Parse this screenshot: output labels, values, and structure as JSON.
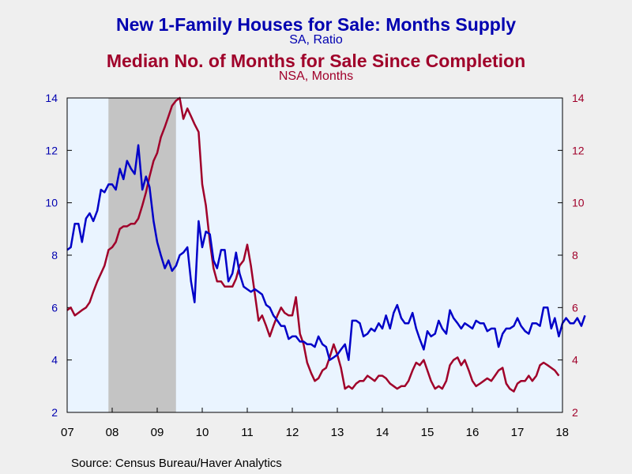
{
  "chart_data": {
    "type": "line",
    "titles": {
      "series1_title": "New 1-Family Houses for Sale: Months Supply",
      "series1_subtitle": "SA, Ratio",
      "series2_title": "Median No. of Months for Sale Since Completion",
      "series2_subtitle": "NSA, Months"
    },
    "x_ticks": [
      "07",
      "08",
      "09",
      "10",
      "11",
      "12",
      "13",
      "14",
      "15",
      "16",
      "17",
      "18"
    ],
    "xlim": [
      2007.0,
      2018.0
    ],
    "y_left": {
      "min": 2,
      "max": 14,
      "ticks": [
        "2",
        "4",
        "6",
        "8",
        "10",
        "12",
        "14"
      ]
    },
    "y_right": {
      "min": 2,
      "max": 14,
      "ticks": [
        "2",
        "4",
        "6",
        "8",
        "10",
        "12",
        "14"
      ]
    },
    "recession": {
      "start": 2007.917,
      "end": 2009.417
    },
    "colors": {
      "series1": "#0000c8",
      "series2": "#a0002a",
      "plot_bg": "#eaf4ff",
      "recession": "#c4c4c4",
      "left_ticks": "#0000b0",
      "right_ticks": "#a0002a"
    },
    "series": [
      {
        "axis": "left",
        "points": [
          [
            2007.0,
            8.2
          ],
          [
            2007.08,
            8.3
          ],
          [
            2007.17,
            9.2
          ],
          [
            2007.25,
            9.2
          ],
          [
            2007.33,
            8.5
          ],
          [
            2007.42,
            9.4
          ],
          [
            2007.5,
            9.6
          ],
          [
            2007.58,
            9.3
          ],
          [
            2007.67,
            9.7
          ],
          [
            2007.75,
            10.5
          ],
          [
            2007.83,
            10.4
          ],
          [
            2007.92,
            10.7
          ],
          [
            2008.0,
            10.7
          ],
          [
            2008.08,
            10.5
          ],
          [
            2008.17,
            11.3
          ],
          [
            2008.25,
            10.9
          ],
          [
            2008.33,
            11.6
          ],
          [
            2008.42,
            11.3
          ],
          [
            2008.5,
            11.1
          ],
          [
            2008.58,
            12.2
          ],
          [
            2008.67,
            10.5
          ],
          [
            2008.75,
            11.0
          ],
          [
            2008.83,
            10.6
          ],
          [
            2008.92,
            9.3
          ],
          [
            2009.0,
            8.5
          ],
          [
            2009.08,
            8.0
          ],
          [
            2009.17,
            7.5
          ],
          [
            2009.25,
            7.8
          ],
          [
            2009.33,
            7.4
          ],
          [
            2009.42,
            7.6
          ],
          [
            2009.5,
            8.0
          ],
          [
            2009.58,
            8.1
          ],
          [
            2009.67,
            8.3
          ],
          [
            2009.75,
            7.0
          ],
          [
            2009.83,
            6.2
          ],
          [
            2009.92,
            9.3
          ],
          [
            2010.0,
            8.3
          ],
          [
            2010.08,
            8.9
          ],
          [
            2010.17,
            8.8
          ],
          [
            2010.25,
            7.8
          ],
          [
            2010.33,
            7.5
          ],
          [
            2010.42,
            8.2
          ],
          [
            2010.5,
            8.2
          ],
          [
            2010.58,
            7.0
          ],
          [
            2010.67,
            7.3
          ],
          [
            2010.75,
            8.1
          ],
          [
            2010.83,
            7.3
          ],
          [
            2010.92,
            6.8
          ],
          [
            2011.0,
            6.7
          ],
          [
            2011.08,
            6.6
          ],
          [
            2011.17,
            6.7
          ],
          [
            2011.25,
            6.6
          ],
          [
            2011.33,
            6.5
          ],
          [
            2011.42,
            6.1
          ],
          [
            2011.5,
            6.0
          ],
          [
            2011.58,
            5.7
          ],
          [
            2011.67,
            5.5
          ],
          [
            2011.75,
            5.3
          ],
          [
            2011.83,
            5.3
          ],
          [
            2011.92,
            4.8
          ],
          [
            2012.0,
            4.9
          ],
          [
            2012.08,
            4.9
          ],
          [
            2012.17,
            4.7
          ],
          [
            2012.25,
            4.7
          ],
          [
            2012.33,
            4.6
          ],
          [
            2012.42,
            4.6
          ],
          [
            2012.5,
            4.5
          ],
          [
            2012.58,
            4.9
          ],
          [
            2012.67,
            4.6
          ],
          [
            2012.75,
            4.5
          ],
          [
            2012.83,
            4.0
          ],
          [
            2012.92,
            4.1
          ],
          [
            2013.0,
            4.2
          ],
          [
            2013.08,
            4.4
          ],
          [
            2013.17,
            4.6
          ],
          [
            2013.25,
            4.0
          ],
          [
            2013.33,
            5.5
          ],
          [
            2013.42,
            5.5
          ],
          [
            2013.5,
            5.4
          ],
          [
            2013.58,
            4.9
          ],
          [
            2013.67,
            5.0
          ],
          [
            2013.75,
            5.2
          ],
          [
            2013.83,
            5.1
          ],
          [
            2013.92,
            5.4
          ],
          [
            2014.0,
            5.2
          ],
          [
            2014.08,
            5.7
          ],
          [
            2014.17,
            5.2
          ],
          [
            2014.25,
            5.8
          ],
          [
            2014.33,
            6.1
          ],
          [
            2014.42,
            5.6
          ],
          [
            2014.5,
            5.4
          ],
          [
            2014.58,
            5.4
          ],
          [
            2014.67,
            5.8
          ],
          [
            2014.75,
            5.2
          ],
          [
            2014.83,
            4.8
          ],
          [
            2014.92,
            4.4
          ],
          [
            2015.0,
            5.1
          ],
          [
            2015.08,
            4.9
          ],
          [
            2015.17,
            5.0
          ],
          [
            2015.25,
            5.5
          ],
          [
            2015.33,
            5.2
          ],
          [
            2015.42,
            5.0
          ],
          [
            2015.5,
            5.9
          ],
          [
            2015.58,
            5.6
          ],
          [
            2015.67,
            5.4
          ],
          [
            2015.75,
            5.2
          ],
          [
            2015.83,
            5.4
          ],
          [
            2015.92,
            5.3
          ],
          [
            2016.0,
            5.2
          ],
          [
            2016.08,
            5.5
          ],
          [
            2016.17,
            5.4
          ],
          [
            2016.25,
            5.4
          ],
          [
            2016.33,
            5.1
          ],
          [
            2016.42,
            5.2
          ],
          [
            2016.5,
            5.2
          ],
          [
            2016.58,
            4.5
          ],
          [
            2016.67,
            5.0
          ],
          [
            2016.75,
            5.2
          ],
          [
            2016.83,
            5.2
          ],
          [
            2016.92,
            5.3
          ],
          [
            2017.0,
            5.6
          ],
          [
            2017.08,
            5.3
          ],
          [
            2017.17,
            5.1
          ],
          [
            2017.25,
            5.0
          ],
          [
            2017.33,
            5.4
          ],
          [
            2017.42,
            5.4
          ],
          [
            2017.5,
            5.3
          ],
          [
            2017.58,
            6.0
          ],
          [
            2017.67,
            6.0
          ],
          [
            2017.75,
            5.2
          ],
          [
            2017.83,
            5.6
          ],
          [
            2017.92,
            4.9
          ],
          [
            2018.0,
            5.4
          ],
          [
            2018.08,
            5.6
          ],
          [
            2018.17,
            5.4
          ],
          [
            2018.25,
            5.4
          ],
          [
            2018.33,
            5.6
          ],
          [
            2018.42,
            5.3
          ],
          [
            2018.5,
            5.7
          ]
        ]
      },
      {
        "axis": "right",
        "points": [
          [
            2007.0,
            5.9
          ],
          [
            2007.08,
            6.0
          ],
          [
            2007.17,
            5.7
          ],
          [
            2007.25,
            5.8
          ],
          [
            2007.33,
            5.9
          ],
          [
            2007.42,
            6.0
          ],
          [
            2007.5,
            6.2
          ],
          [
            2007.58,
            6.6
          ],
          [
            2007.67,
            7.0
          ],
          [
            2007.75,
            7.3
          ],
          [
            2007.83,
            7.6
          ],
          [
            2007.92,
            8.2
          ],
          [
            2008.0,
            8.3
          ],
          [
            2008.08,
            8.5
          ],
          [
            2008.17,
            9.0
          ],
          [
            2008.25,
            9.1
          ],
          [
            2008.33,
            9.1
          ],
          [
            2008.42,
            9.2
          ],
          [
            2008.5,
            9.2
          ],
          [
            2008.58,
            9.4
          ],
          [
            2008.67,
            9.9
          ],
          [
            2008.75,
            10.4
          ],
          [
            2008.83,
            11.0
          ],
          [
            2008.92,
            11.6
          ],
          [
            2009.0,
            11.9
          ],
          [
            2009.08,
            12.5
          ],
          [
            2009.17,
            12.9
          ],
          [
            2009.25,
            13.3
          ],
          [
            2009.33,
            13.7
          ],
          [
            2009.42,
            13.9
          ],
          [
            2009.5,
            14.0
          ],
          [
            2009.58,
            13.2
          ],
          [
            2009.67,
            13.6
          ],
          [
            2009.75,
            13.3
          ],
          [
            2009.83,
            13.0
          ],
          [
            2009.92,
            12.7
          ],
          [
            2010.0,
            10.7
          ],
          [
            2010.08,
            9.9
          ],
          [
            2010.17,
            8.5
          ],
          [
            2010.25,
            7.5
          ],
          [
            2010.33,
            7.0
          ],
          [
            2010.42,
            7.0
          ],
          [
            2010.5,
            6.8
          ],
          [
            2010.58,
            6.8
          ],
          [
            2010.67,
            6.8
          ],
          [
            2010.75,
            7.1
          ],
          [
            2010.83,
            7.6
          ],
          [
            2010.92,
            7.8
          ],
          [
            2011.0,
            8.4
          ],
          [
            2011.08,
            7.6
          ],
          [
            2011.17,
            6.5
          ],
          [
            2011.25,
            5.5
          ],
          [
            2011.33,
            5.7
          ],
          [
            2011.42,
            5.3
          ],
          [
            2011.5,
            4.9
          ],
          [
            2011.58,
            5.3
          ],
          [
            2011.67,
            5.7
          ],
          [
            2011.75,
            6.0
          ],
          [
            2011.83,
            5.8
          ],
          [
            2011.92,
            5.7
          ],
          [
            2012.0,
            5.7
          ],
          [
            2012.08,
            6.4
          ],
          [
            2012.17,
            5.0
          ],
          [
            2012.25,
            4.6
          ],
          [
            2012.33,
            3.9
          ],
          [
            2012.42,
            3.5
          ],
          [
            2012.5,
            3.2
          ],
          [
            2012.58,
            3.3
          ],
          [
            2012.67,
            3.6
          ],
          [
            2012.75,
            3.7
          ],
          [
            2012.83,
            4.1
          ],
          [
            2012.92,
            4.6
          ],
          [
            2013.0,
            4.2
          ],
          [
            2013.08,
            3.7
          ],
          [
            2013.17,
            2.9
          ],
          [
            2013.25,
            3.0
          ],
          [
            2013.33,
            2.9
          ],
          [
            2013.42,
            3.1
          ],
          [
            2013.5,
            3.2
          ],
          [
            2013.58,
            3.2
          ],
          [
            2013.67,
            3.4
          ],
          [
            2013.75,
            3.3
          ],
          [
            2013.83,
            3.2
          ],
          [
            2013.92,
            3.4
          ],
          [
            2014.0,
            3.4
          ],
          [
            2014.08,
            3.3
          ],
          [
            2014.17,
            3.1
          ],
          [
            2014.25,
            3.0
          ],
          [
            2014.33,
            2.9
          ],
          [
            2014.42,
            3.0
          ],
          [
            2014.5,
            3.0
          ],
          [
            2014.58,
            3.2
          ],
          [
            2014.67,
            3.6
          ],
          [
            2014.75,
            3.9
          ],
          [
            2014.83,
            3.8
          ],
          [
            2014.92,
            4.0
          ],
          [
            2015.0,
            3.6
          ],
          [
            2015.08,
            3.2
          ],
          [
            2015.17,
            2.9
          ],
          [
            2015.25,
            3.0
          ],
          [
            2015.33,
            2.9
          ],
          [
            2015.42,
            3.2
          ],
          [
            2015.5,
            3.8
          ],
          [
            2015.58,
            4.0
          ],
          [
            2015.67,
            4.1
          ],
          [
            2015.75,
            3.8
          ],
          [
            2015.83,
            4.0
          ],
          [
            2015.92,
            3.6
          ],
          [
            2016.0,
            3.2
          ],
          [
            2016.08,
            3.0
          ],
          [
            2016.17,
            3.1
          ],
          [
            2016.25,
            3.2
          ],
          [
            2016.33,
            3.3
          ],
          [
            2016.42,
            3.2
          ],
          [
            2016.5,
            3.4
          ],
          [
            2016.58,
            3.6
          ],
          [
            2016.67,
            3.7
          ],
          [
            2016.75,
            3.1
          ],
          [
            2016.83,
            2.9
          ],
          [
            2016.92,
            2.8
          ],
          [
            2017.0,
            3.1
          ],
          [
            2017.08,
            3.2
          ],
          [
            2017.17,
            3.2
          ],
          [
            2017.25,
            3.4
          ],
          [
            2017.33,
            3.2
          ],
          [
            2017.42,
            3.4
          ],
          [
            2017.5,
            3.8
          ],
          [
            2017.58,
            3.9
          ],
          [
            2017.67,
            3.8
          ],
          [
            2017.75,
            3.7
          ],
          [
            2017.83,
            3.6
          ],
          [
            2017.92,
            3.4
          ]
        ]
      }
    ],
    "source": "Source:  Census Bureau/Haver Analytics"
  }
}
